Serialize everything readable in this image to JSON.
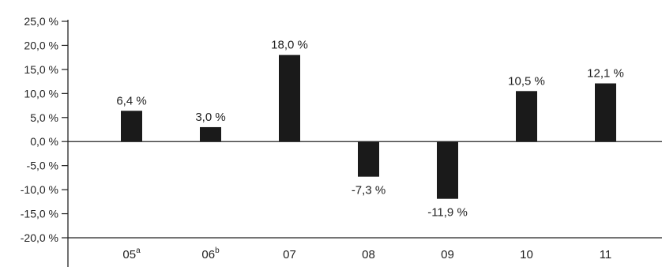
{
  "chart_data": {
    "type": "bar",
    "categories": [
      {
        "main": "05",
        "sup": "a"
      },
      {
        "main": "06",
        "sup": "b"
      },
      {
        "main": "07",
        "sup": ""
      },
      {
        "main": "08",
        "sup": ""
      },
      {
        "main": "09",
        "sup": ""
      },
      {
        "main": "10",
        "sup": ""
      },
      {
        "main": "11",
        "sup": ""
      }
    ],
    "values": [
      6.4,
      3.0,
      18.0,
      -7.3,
      -11.9,
      10.5,
      12.1
    ],
    "value_labels": [
      "6,4 %",
      "3,0 %",
      "18,0 %",
      "-7,3 %",
      "-11,9 %",
      "10,5 %",
      "12,1 %"
    ],
    "y_ticks": [
      25,
      20,
      15,
      10,
      5,
      0,
      -5,
      -10,
      -15,
      -20
    ],
    "y_tick_labels": [
      "25,0 %",
      "20,0 %",
      "15,0 %",
      "10,0 %",
      "5,0 %",
      "0,0 %",
      "-5,0 %",
      "-10,0 %",
      "-15,0 %",
      "-20,0 %"
    ],
    "ylim": [
      -20,
      25
    ],
    "title": "",
    "xlabel": "",
    "ylabel": "",
    "grid": false,
    "bar_color": "#1a1a1a",
    "axis_color": "#222222"
  }
}
